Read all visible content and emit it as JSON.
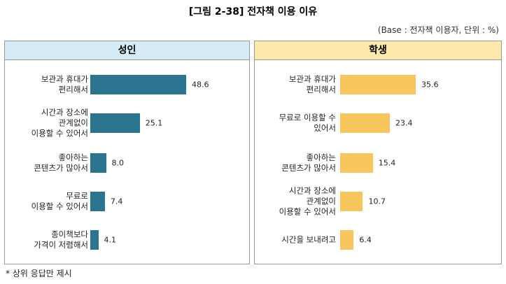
{
  "title": "[그림 2-38] 전자책 이용 이유",
  "subtitle": "(Base : 전자책 이용자, 단위 : %)",
  "footnote": "* 상위 응답만 제시",
  "chart_data": [
    {
      "type": "bar",
      "orientation": "horizontal",
      "title": "성인",
      "color": "#2b7590",
      "categories": [
        "보관과 휴대가\n편리해서",
        "시간과 장소에\n관계없이\n이용할 수 있어서",
        "좋아하는\n콘텐츠가 많아서",
        "무료로\n이용할 수 있어서",
        "종이책보다\n가격이 저렴해서"
      ],
      "values": [
        48.6,
        25.1,
        8.0,
        7.4,
        4.1
      ],
      "value_labels": [
        "48.6",
        "25.1",
        "8.0",
        "7.4",
        "4.1"
      ]
    },
    {
      "type": "bar",
      "orientation": "horizontal",
      "title": "학생",
      "color": "#f8c65c",
      "categories": [
        "보관과 휴대가\n편리해서",
        "무료로 이용할 수\n있어서",
        "좋아하는\n콘텐츠가 많아서",
        "시간과 장소에\n관계없이\n이용할 수 있어서",
        "시간을 보내려고"
      ],
      "values": [
        35.6,
        23.4,
        15.4,
        10.7,
        6.4
      ]
    }
  ]
}
